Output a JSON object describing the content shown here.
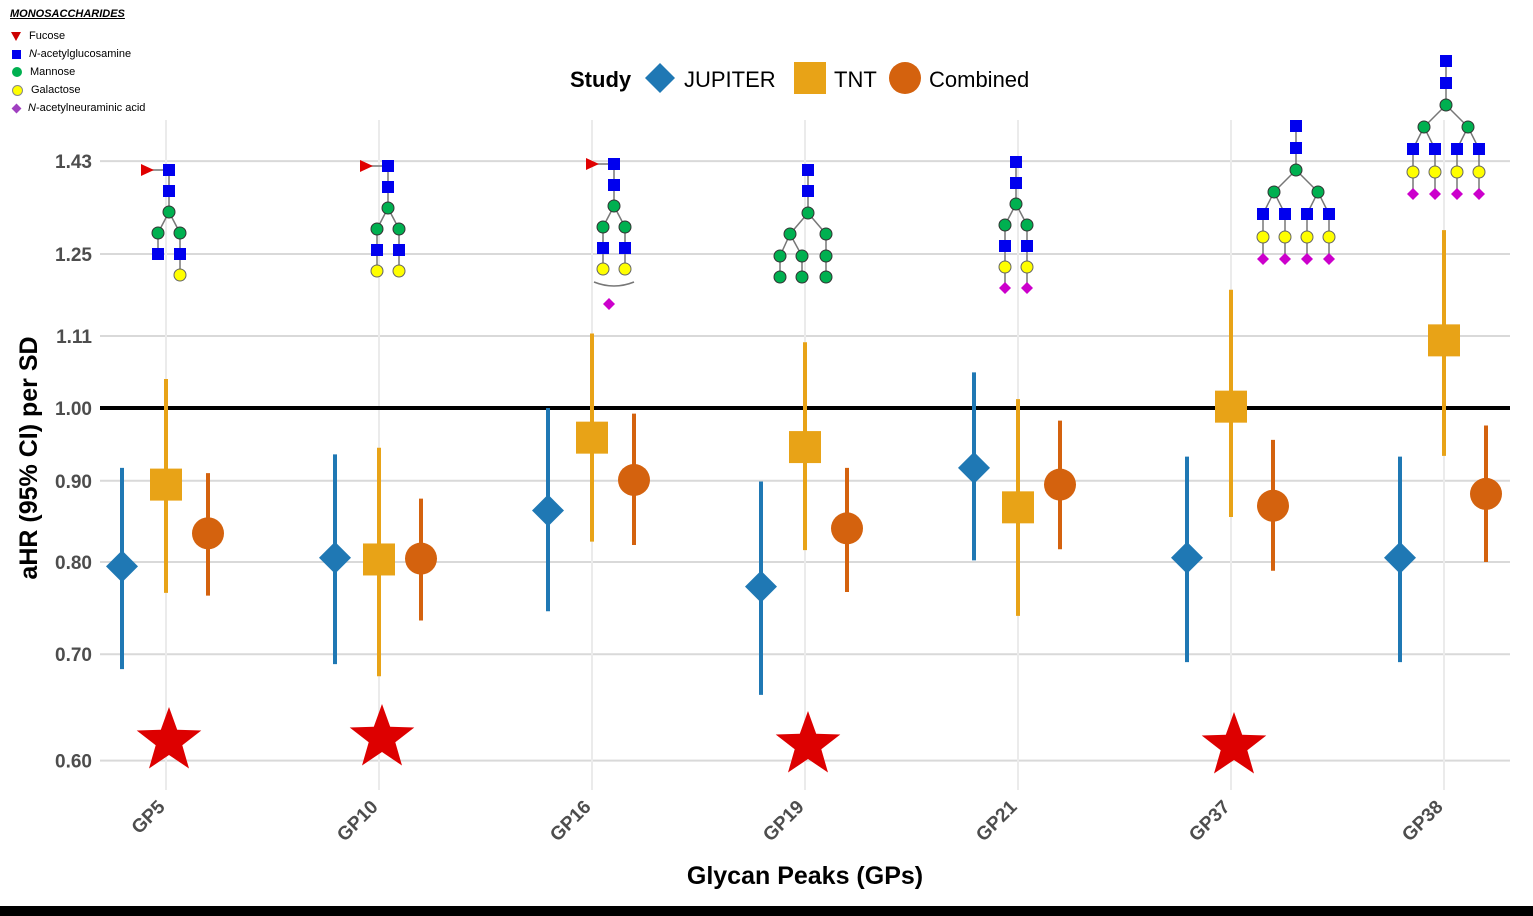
{
  "monosaccharide_key": {
    "title": "MONOSACCHARIDES",
    "items": [
      {
        "label": "Fucose",
        "icon": "red-triangle-icon",
        "color": "#cc0000"
      },
      {
        "label": "N-acetylglucosamine",
        "icon": "blue-square-icon",
        "color": "#0000ee"
      },
      {
        "label": "Mannose",
        "icon": "green-circle-icon",
        "color": "#00b050"
      },
      {
        "label": "Galactose",
        "icon": "yellow-circle-icon",
        "color": "#ffff00"
      },
      {
        "label": "N-acetylneuraminic acid",
        "icon": "purple-diamond-icon",
        "color": "#a040c0"
      }
    ]
  },
  "chart_data": {
    "type": "scatter",
    "title": "",
    "xlabel": "Glycan Peaks (GPs)",
    "ylabel": "aHR (95% CI) per SD",
    "y_scale": "log",
    "ylim": [
      0.575,
      1.54
    ],
    "yticks": [
      0.6,
      0.7,
      0.8,
      0.9,
      1.0,
      1.11,
      1.25,
      1.43
    ],
    "ytick_labels": [
      "0.60",
      "0.70",
      "0.80",
      "0.90",
      "1.00",
      "1.11",
      "1.25",
      "1.43"
    ],
    "reference_line": 1.0,
    "categories": [
      "GP5",
      "GP10",
      "GP16",
      "GP19",
      "GP21",
      "GP37",
      "GP38"
    ],
    "legend": {
      "title": "Study",
      "position": "top-center",
      "entries": [
        {
          "name": "JUPITER",
          "marker": "diamond",
          "color": "#1f78b4"
        },
        {
          "name": "TNT",
          "marker": "square",
          "color": "#e8a317"
        },
        {
          "name": "Combined",
          "marker": "circle",
          "color": "#d4620e"
        }
      ]
    },
    "series": [
      {
        "name": "JUPITER",
        "color": "#1f78b4",
        "marker": "diamond",
        "values": [
          0.795,
          0.805,
          0.862,
          0.772,
          0.917,
          0.805,
          0.805
        ],
        "lower": [
          0.685,
          0.69,
          0.745,
          0.66,
          0.802,
          0.692,
          0.692
        ],
        "upper": [
          0.917,
          0.935,
          1.0,
          0.899,
          1.053,
          0.932,
          0.932
        ]
      },
      {
        "name": "TNT",
        "color": "#e8a317",
        "marker": "square",
        "values": [
          0.895,
          0.803,
          0.958,
          0.945,
          0.866,
          1.002,
          1.103
        ],
        "lower": [
          0.765,
          0.678,
          0.824,
          0.814,
          0.74,
          0.854,
          0.933
        ],
        "upper": [
          1.043,
          0.944,
          1.114,
          1.1,
          1.013,
          1.187,
          1.294
        ]
      },
      {
        "name": "Combined",
        "color": "#d4620e",
        "marker": "circle",
        "values": [
          0.834,
          0.804,
          0.901,
          0.84,
          0.895,
          0.868,
          0.883
        ],
        "lower": [
          0.762,
          0.735,
          0.82,
          0.766,
          0.815,
          0.79,
          0.8
        ],
        "upper": [
          0.91,
          0.877,
          0.992,
          0.917,
          0.982,
          0.955,
          0.975
        ]
      }
    ],
    "significance_stars": [
      "GP5",
      "GP10",
      "GP19",
      "GP37"
    ],
    "star_color": "#dd0000",
    "grid": true
  }
}
